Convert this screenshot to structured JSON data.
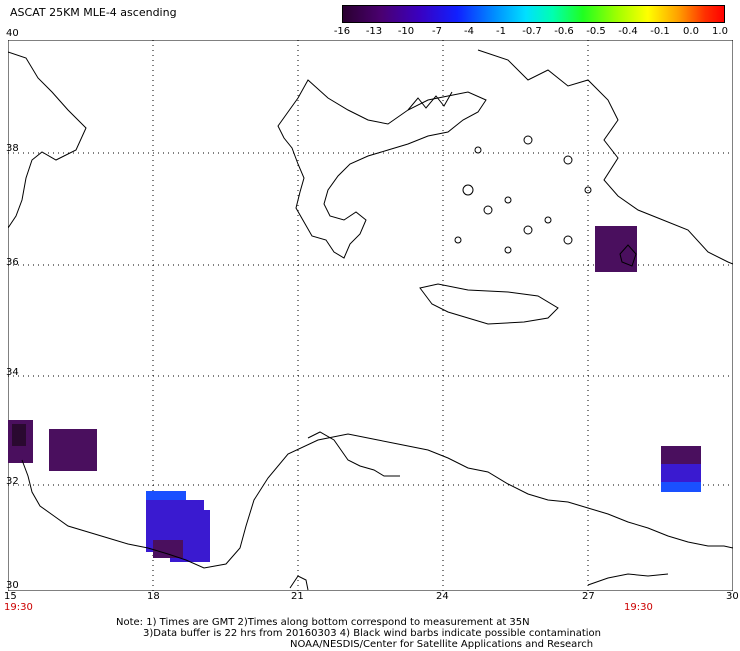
{
  "header": {
    "title": "ASCAT 25KM MLE-4 ascending"
  },
  "colorbar": {
    "ticks": [
      "-16",
      "-13",
      "-10",
      "-7",
      "-4",
      "-1",
      "-0.7",
      "-0.6",
      "-0.5",
      "-0.4",
      "-0.1",
      "0.0",
      "1.0"
    ],
    "colors": [
      "#3a0040",
      "#4a0070",
      "#3a00b8",
      "#1a20ff",
      "#0070ff",
      "#00b8ff",
      "#00e8e8",
      "#00ff90",
      "#40ff00",
      "#c0ff00",
      "#ffe000",
      "#ff8000",
      "#ff2000"
    ]
  },
  "map": {
    "lon_ticks": [
      "15",
      "18",
      "21",
      "24",
      "27",
      "30"
    ],
    "lat_ticks": [
      "30",
      "32",
      "34",
      "36",
      "38",
      "40"
    ],
    "time_left": "19:30",
    "time_right": "19:30",
    "swath_colors": {
      "dark_purple": "#4a0f5e",
      "blue_purple": "#3a1ad0",
      "blue": "#1a50ff"
    }
  },
  "notes": {
    "line1": "Note: 1) Times are GMT 2)Times along bottom correspond to measurement at 35N",
    "line2": "3)Data buffer is 22 hrs from 20160303 4) Black wind barbs indicate possible contamination",
    "line3": "NOAA/NESDIS/Center for Satellite Applications and Research"
  }
}
